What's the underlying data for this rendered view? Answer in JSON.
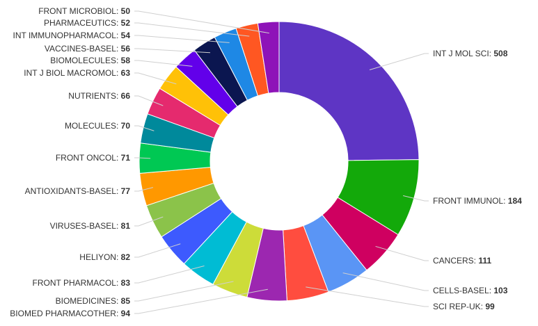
{
  "chart_data": {
    "type": "pie",
    "style": "donut",
    "title": "",
    "slices": [
      {
        "label": "INT J MOL SCI",
        "value": 508,
        "color": "#5e35c4"
      },
      {
        "label": "FRONT IMMUNOL",
        "value": 184,
        "color": "#13a90a"
      },
      {
        "label": "CANCERS",
        "value": 111,
        "color": "#cf0060"
      },
      {
        "label": "CELLS-BASEL",
        "value": 103,
        "color": "#5a95f5"
      },
      {
        "label": "SCI REP-UK",
        "value": 99,
        "color": "#ff4d3f"
      },
      {
        "label": "BIOMED PHARMACOTHER",
        "value": 94,
        "color": "#9c27b0"
      },
      {
        "label": "BIOMEDICINES",
        "value": 85,
        "color": "#cddc39"
      },
      {
        "label": "FRONT PHARMACOL",
        "value": 83,
        "color": "#00bcd4"
      },
      {
        "label": "HELIYON",
        "value": 82,
        "color": "#3d5afe"
      },
      {
        "label": "VIRUSES-BASEL",
        "value": 81,
        "color": "#8bc34a"
      },
      {
        "label": "ANTIOXIDANTS-BASEL",
        "value": 77,
        "color": "#ff9800"
      },
      {
        "label": "FRONT ONCOL",
        "value": 71,
        "color": "#00c853"
      },
      {
        "label": "MOLECULES",
        "value": 70,
        "color": "#00899b"
      },
      {
        "label": "NUTRIENTS",
        "value": 66,
        "color": "#e52a6e"
      },
      {
        "label": "INT J BIOL MACROMOL",
        "value": 63,
        "color": "#ffc107"
      },
      {
        "label": "BIOMOLECULES",
        "value": 58,
        "color": "#6200ea"
      },
      {
        "label": "VACCINES-BASEL",
        "value": 56,
        "color": "#0b1650"
      },
      {
        "label": "INT IMMUNOPHARMACOL",
        "value": 54,
        "color": "#1e88e5"
      },
      {
        "label": "PHARMACEUTICS",
        "value": 52,
        "color": "#ff5722"
      },
      {
        "label": "FRONT MICROBIOL",
        "value": 50,
        "color": "#8e13b8"
      }
    ]
  }
}
